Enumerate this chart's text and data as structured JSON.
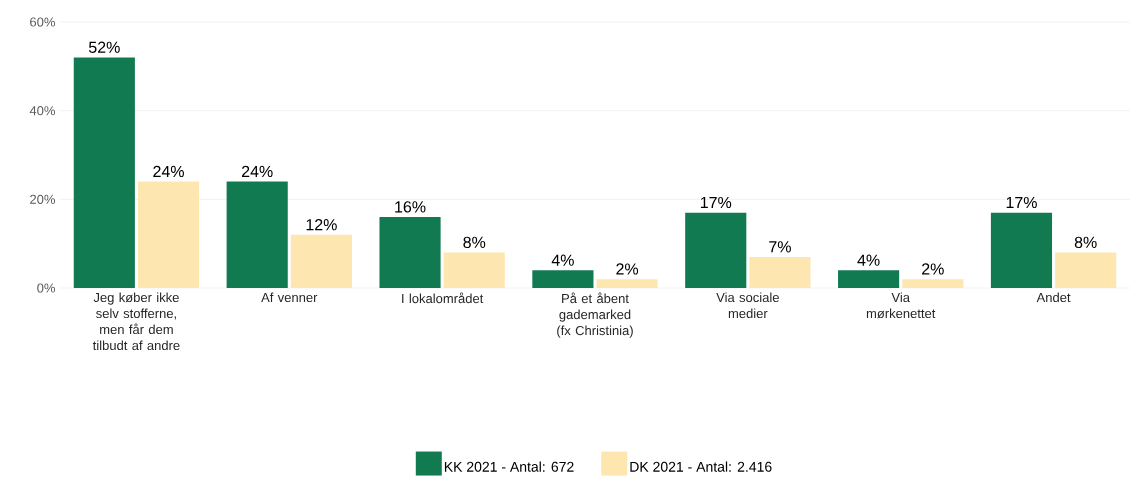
{
  "chart_data": {
    "type": "bar",
    "categories": [
      "Jeg køber ikke selv stofferne, men får dem tilbudt af andre",
      "Af venner",
      "I lokalområdet",
      "På et åbent gademarked (fx Christinia)",
      "Via sociale medier",
      "Via mørkenettet",
      "Andet"
    ],
    "series": [
      {
        "name": "KK 2021 - Antal: 672",
        "color": "#127a50",
        "values": [
          52,
          24,
          16,
          4,
          17,
          4,
          17
        ],
        "value_labels": [
          "52%",
          "24%",
          "16%",
          "4%",
          "17%",
          "4%",
          "17%"
        ]
      },
      {
        "name": "DK 2021 - Antal: 2.416",
        "color": "#fde6b0",
        "values": [
          24,
          12,
          8,
          2,
          7,
          2,
          8
        ],
        "value_labels": [
          "24%",
          "12%",
          "8%",
          "2%",
          "7%",
          "2%",
          "8%"
        ]
      }
    ],
    "ylim": [
      0,
      60
    ],
    "yticks": [
      {
        "value": 0,
        "label": "0%"
      },
      {
        "value": 20,
        "label": "20%"
      },
      {
        "value": 40,
        "label": "40%"
      },
      {
        "value": 60,
        "label": "60%"
      }
    ],
    "grid": "y",
    "legend": "bottom"
  }
}
